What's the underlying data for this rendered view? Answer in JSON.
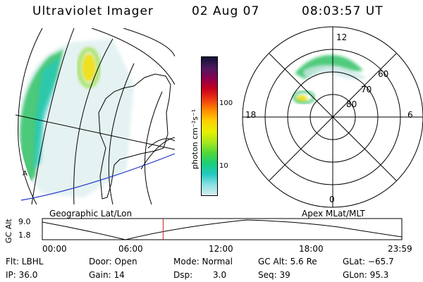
{
  "header": {
    "instrument": "Ultraviolet Imager",
    "date": "02 Aug 07",
    "time": "08:03:57 UT"
  },
  "colorbar": {
    "unit_label": "photon cm⁻²s⁻¹",
    "tick_labels": [
      "100",
      "10"
    ],
    "colors": [
      "#111133",
      "#4b1a5e",
      "#8b0050",
      "#c8001e",
      "#ee3a10",
      "#ff8c00",
      "#ffcf00",
      "#e8f000",
      "#a8e81e",
      "#52d63a",
      "#1ad078",
      "#22c8c0",
      "#8ae0e4",
      "#d8eef0"
    ]
  },
  "left_panel": {
    "caption": "Geographic Lat/Lon",
    "corner_mark": "A",
    "colors": {
      "aurora_low": "#33c266",
      "aurora_mid": "#9be04a",
      "aurora_high": "#f0e020",
      "haze": "#cfe8e8",
      "blue_line": "#1f35c8"
    }
  },
  "right_panel": {
    "caption": "Apex MLat/MLT",
    "mlt_labels": {
      "top": "12",
      "left": "18",
      "right": "6",
      "bottom": "0"
    },
    "lat_labels": [
      "60",
      "70",
      "80"
    ]
  },
  "timeline": {
    "axis_label": "GC Alt",
    "y_ticks": [
      "9.0",
      "1.8"
    ],
    "x_ticks": [
      "00:00",
      "06:00",
      "12:00",
      "18:00",
      "23:59"
    ],
    "cursor_time_hours": 8.066,
    "colors": {
      "cursor": "#c81e1e",
      "curve": "#000000"
    }
  },
  "info": {
    "filter": "Flt: LBHL",
    "door": "Door: Open",
    "mode": "Mode: Normal",
    "gc_alt": "GC Alt: 5.6 Re",
    "glat": "GLat: −65.7",
    "ip": "IP: 36.0",
    "gain": "Gain: 14",
    "dsp": "Dsp:",
    "dsp_value": "3.0",
    "seq": "Seq: 39",
    "glon": "GLon:  95.3"
  }
}
